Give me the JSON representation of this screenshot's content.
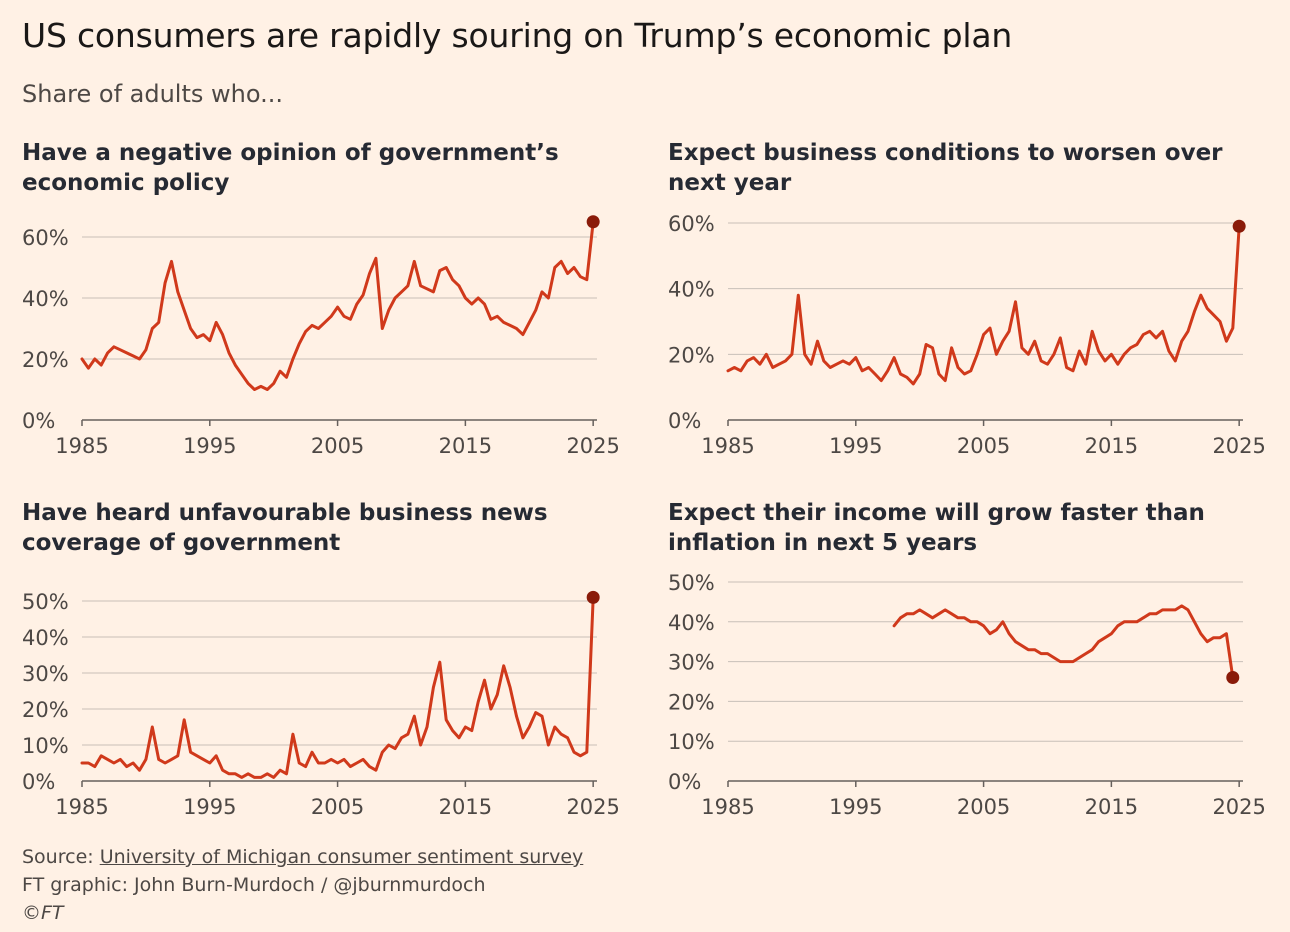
{
  "title": "US consumers are rapidly souring on Trump’s economic plan",
  "subtitle": "Share of adults who...",
  "colors": {
    "background": "#fff1e5",
    "line": "#d0391b",
    "endpoint": "#8a1b09",
    "grid": "#c8c0b8",
    "text": "#4d4845"
  },
  "footer": {
    "source_prefix": "Source: ",
    "source_link": "University of Michigan consumer sentiment survey",
    "credit": "FT graphic: John Burn-Murdoch / @jburnmurdoch",
    "copyright": "©FT"
  },
  "chart_data": [
    {
      "type": "line",
      "title": "Have a negative opinion of government’s economic policy",
      "xlim": [
        1985,
        2025.3
      ],
      "ylim": [
        0,
        60
      ],
      "x_ticks": [
        "1985",
        "1995",
        "2005",
        "2015",
        "2025"
      ],
      "y_ticks": [
        {
          "value": 0,
          "label": "0%"
        },
        {
          "value": 20,
          "label": "20%"
        },
        {
          "value": 40,
          "label": "40%"
        },
        {
          "value": 60,
          "label": "60%"
        }
      ],
      "x": [
        1985,
        1985.5,
        1986,
        1986.5,
        1987,
        1987.5,
        1988,
        1988.5,
        1989,
        1989.5,
        1990,
        1990.5,
        1991,
        1991.5,
        1992,
        1992.5,
        1993,
        1993.5,
        1994,
        1994.5,
        1995,
        1995.5,
        1996,
        1996.5,
        1997,
        1997.5,
        1998,
        1998.5,
        1999,
        1999.5,
        2000,
        2000.5,
        2001,
        2001.5,
        2002,
        2002.5,
        2003,
        2003.5,
        2004,
        2004.5,
        2005,
        2005.5,
        2006,
        2006.5,
        2007,
        2007.5,
        2008,
        2008.5,
        2009,
        2009.5,
        2010,
        2010.5,
        2011,
        2011.5,
        2012,
        2012.5,
        2013,
        2013.5,
        2014,
        2014.5,
        2015,
        2015.5,
        2016,
        2016.5,
        2017,
        2017.5,
        2018,
        2018.5,
        2019,
        2019.5,
        2020,
        2020.5,
        2021,
        2021.5,
        2022,
        2022.5,
        2023,
        2023.5,
        2024,
        2024.5,
        2025
      ],
      "y": [
        20,
        17,
        20,
        18,
        22,
        24,
        23,
        22,
        21,
        20,
        23,
        30,
        32,
        45,
        52,
        42,
        36,
        30,
        27,
        28,
        26,
        32,
        28,
        22,
        18,
        15,
        12,
        10,
        11,
        10,
        12,
        16,
        14,
        20,
        25,
        29,
        31,
        30,
        32,
        34,
        37,
        34,
        33,
        38,
        41,
        48,
        53,
        30,
        36,
        40,
        42,
        44,
        52,
        44,
        43,
        42,
        49,
        50,
        46,
        44,
        40,
        38,
        40,
        38,
        33,
        34,
        32,
        31,
        30,
        28,
        32,
        36,
        42,
        40,
        50,
        52,
        48,
        50,
        47,
        46,
        65
      ]
    },
    {
      "type": "line",
      "title": "Expect business conditions to worsen over next year",
      "xlim": [
        1985,
        2025.3
      ],
      "ylim": [
        0,
        60
      ],
      "x_ticks": [
        "1985",
        "1995",
        "2005",
        "2015",
        "2025"
      ],
      "y_ticks": [
        {
          "value": 0,
          "label": "0%"
        },
        {
          "value": 20,
          "label": "20%"
        },
        {
          "value": 40,
          "label": "40%"
        },
        {
          "value": 60,
          "label": "60%"
        }
      ],
      "x": [
        1985,
        1985.5,
        1986,
        1986.5,
        1987,
        1987.5,
        1988,
        1988.5,
        1989,
        1989.5,
        1990,
        1990.5,
        1991,
        1991.5,
        1992,
        1992.5,
        1993,
        1993.5,
        1994,
        1994.5,
        1995,
        1995.5,
        1996,
        1996.5,
        1997,
        1997.5,
        1998,
        1998.5,
        1999,
        1999.5,
        2000,
        2000.5,
        2001,
        2001.5,
        2002,
        2002.5,
        2003,
        2003.5,
        2004,
        2004.5,
        2005,
        2005.5,
        2006,
        2006.5,
        2007,
        2007.5,
        2008,
        2008.5,
        2009,
        2009.5,
        2010,
        2010.5,
        2011,
        2011.5,
        2012,
        2012.5,
        2013,
        2013.5,
        2014,
        2014.5,
        2015,
        2015.5,
        2016,
        2016.5,
        2017,
        2017.5,
        2018,
        2018.5,
        2019,
        2019.5,
        2020,
        2020.5,
        2021,
        2021.5,
        2022,
        2022.5,
        2023,
        2023.5,
        2024,
        2024.5,
        2025
      ],
      "y": [
        15,
        16,
        15,
        18,
        19,
        17,
        20,
        16,
        17,
        18,
        20,
        38,
        20,
        17,
        24,
        18,
        16,
        17,
        18,
        17,
        19,
        15,
        16,
        14,
        12,
        15,
        19,
        14,
        13,
        11,
        14,
        23,
        22,
        14,
        12,
        22,
        16,
        14,
        15,
        20,
        26,
        28,
        20,
        24,
        27,
        36,
        22,
        20,
        24,
        18,
        17,
        20,
        25,
        16,
        15,
        21,
        17,
        27,
        21,
        18,
        20,
        17,
        20,
        22,
        23,
        26,
        27,
        25,
        27,
        21,
        18,
        24,
        27,
        33,
        38,
        34,
        32,
        30,
        24,
        28,
        59
      ]
    },
    {
      "type": "line",
      "title": "Have heard unfavourable business news coverage of government",
      "xlim": [
        1985,
        2025.3
      ],
      "ylim": [
        0,
        50
      ],
      "x_ticks": [
        "1985",
        "1995",
        "2005",
        "2015",
        "2025"
      ],
      "y_ticks": [
        {
          "value": 0,
          "label": "0%"
        },
        {
          "value": 10,
          "label": "10%"
        },
        {
          "value": 20,
          "label": "20%"
        },
        {
          "value": 30,
          "label": "30%"
        },
        {
          "value": 40,
          "label": "40%"
        },
        {
          "value": 50,
          "label": "50%"
        }
      ],
      "x": [
        1985,
        1985.5,
        1986,
        1986.5,
        1987,
        1987.5,
        1988,
        1988.5,
        1989,
        1989.5,
        1990,
        1990.5,
        1991,
        1991.5,
        1992,
        1992.5,
        1993,
        1993.5,
        1994,
        1994.5,
        1995,
        1995.5,
        1996,
        1996.5,
        1997,
        1997.5,
        1998,
        1998.5,
        1999,
        1999.5,
        2000,
        2000.5,
        2001,
        2001.5,
        2002,
        2002.5,
        2003,
        2003.5,
        2004,
        2004.5,
        2005,
        2005.5,
        2006,
        2006.5,
        2007,
        2007.5,
        2008,
        2008.5,
        2009,
        2009.5,
        2010,
        2010.5,
        2011,
        2011.5,
        2012,
        2012.5,
        2013,
        2013.5,
        2014,
        2014.5,
        2015,
        2015.5,
        2016,
        2016.5,
        2017,
        2017.5,
        2018,
        2018.5,
        2019,
        2019.5,
        2020,
        2020.5,
        2021,
        2021.5,
        2022,
        2022.5,
        2023,
        2023.5,
        2024,
        2024.5,
        2025
      ],
      "y": [
        5,
        5,
        4,
        7,
        6,
        5,
        6,
        4,
        5,
        3,
        6,
        15,
        6,
        5,
        6,
        7,
        17,
        8,
        7,
        6,
        5,
        7,
        3,
        2,
        2,
        1,
        2,
        1,
        1,
        2,
        1,
        3,
        2,
        13,
        5,
        4,
        8,
        5,
        5,
        6,
        5,
        6,
        4,
        5,
        6,
        4,
        3,
        8,
        10,
        9,
        12,
        13,
        18,
        10,
        15,
        26,
        33,
        17,
        14,
        12,
        15,
        14,
        22,
        28,
        20,
        24,
        32,
        26,
        18,
        12,
        15,
        19,
        18,
        10,
        15,
        13,
        12,
        8,
        7,
        8,
        51
      ]
    },
    {
      "type": "line",
      "title": "Expect their income will grow faster than inflation in next 5 years",
      "xlim": [
        1985,
        2025.3
      ],
      "ylim": [
        0,
        50
      ],
      "x_ticks": [
        "1985",
        "1995",
        "2005",
        "2015",
        "2025"
      ],
      "y_ticks": [
        {
          "value": 0,
          "label": "0%"
        },
        {
          "value": 10,
          "label": "10%"
        },
        {
          "value": 20,
          "label": "20%"
        },
        {
          "value": 30,
          "label": "30%"
        },
        {
          "value": 40,
          "label": "40%"
        },
        {
          "value": 50,
          "label": "50%"
        }
      ],
      "x": [
        1998,
        1998.5,
        1999,
        1999.5,
        2000,
        2000.5,
        2001,
        2001.5,
        2002,
        2002.5,
        2003,
        2003.5,
        2004,
        2004.5,
        2005,
        2005.5,
        2006,
        2006.5,
        2007,
        2007.5,
        2008,
        2008.5,
        2009,
        2009.5,
        2010,
        2010.5,
        2011,
        2011.5,
        2012,
        2012.5,
        2013,
        2013.5,
        2014,
        2014.5,
        2015,
        2015.5,
        2016,
        2016.5,
        2017,
        2017.5,
        2018,
        2018.5,
        2019,
        2019.5,
        2020,
        2020.5,
        2021,
        2021.5,
        2022,
        2022.5,
        2023,
        2023.5,
        2024,
        2024.5
      ],
      "y": [
        39,
        41,
        42,
        42,
        43,
        42,
        41,
        42,
        43,
        42,
        41,
        41,
        40,
        40,
        39,
        37,
        38,
        40,
        37,
        35,
        34,
        33,
        33,
        32,
        32,
        31,
        30,
        30,
        30,
        31,
        32,
        33,
        35,
        36,
        37,
        39,
        40,
        40,
        40,
        41,
        42,
        42,
        43,
        43,
        43,
        44,
        43,
        40,
        37,
        35,
        36,
        36,
        37,
        26
      ]
    }
  ]
}
